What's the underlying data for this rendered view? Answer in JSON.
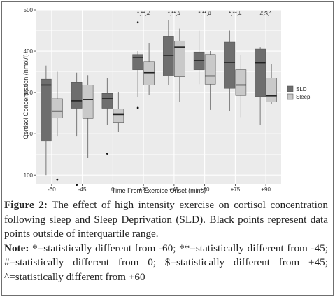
{
  "chart_data": {
    "type": "box",
    "xlabel": "Time From Exercise Onset (mins)",
    "ylabel": "Cortisol Concentration (nmol/l)",
    "ylim": [
      80,
      500
    ],
    "yticks": [
      100,
      200,
      300,
      400,
      500
    ],
    "categories": [
      "-60",
      "-45",
      "0",
      "+20",
      "+45",
      "+60",
      "+75",
      "+90"
    ],
    "significance": [
      "",
      "",
      "",
      "*,**,#",
      "*,**,#",
      "*,**,#",
      "*,**,#",
      "#,$,^"
    ],
    "legend_position": "right",
    "series": [
      {
        "name": "SLD",
        "color": "#6e6e6e",
        "boxes": [
          {
            "min": 100,
            "q1": 182,
            "median": 318,
            "q3": 332,
            "max": 365,
            "outliers": []
          },
          {
            "min": 195,
            "q1": 262,
            "median": 280,
            "q3": 325,
            "max": 348,
            "outliers": [
              77
            ]
          },
          {
            "min": 222,
            "q1": 262,
            "median": 285,
            "q3": 298,
            "max": 335,
            "outliers": [
              152
            ]
          },
          {
            "min": 290,
            "q1": 355,
            "median": 385,
            "q3": 392,
            "max": 400,
            "outliers": [
              470,
              263
            ]
          },
          {
            "min": 318,
            "q1": 340,
            "median": 390,
            "q3": 435,
            "max": 475,
            "outliers": []
          },
          {
            "min": 320,
            "q1": 355,
            "median": 378,
            "q3": 398,
            "max": 450,
            "outliers": []
          },
          {
            "min": 255,
            "q1": 310,
            "median": 373,
            "q3": 422,
            "max": 450,
            "outliers": []
          },
          {
            "min": 222,
            "q1": 290,
            "median": 372,
            "q3": 405,
            "max": 410,
            "outliers": []
          }
        ]
      },
      {
        "name": "Sleep",
        "color": "#c9c9c9",
        "boxes": [
          {
            "min": 195,
            "q1": 238,
            "median": 255,
            "q3": 285,
            "max": 350,
            "outliers": [
              90
            ]
          },
          {
            "min": 142,
            "q1": 237,
            "median": 283,
            "q3": 318,
            "max": 342,
            "outliers": []
          },
          {
            "min": 205,
            "q1": 228,
            "median": 247,
            "q3": 260,
            "max": 300,
            "outliers": []
          },
          {
            "min": 295,
            "q1": 318,
            "median": 348,
            "q3": 375,
            "max": 420,
            "outliers": []
          },
          {
            "min": 278,
            "q1": 338,
            "median": 410,
            "q3": 425,
            "max": 455,
            "outliers": []
          },
          {
            "min": 258,
            "q1": 320,
            "median": 340,
            "q3": 392,
            "max": 400,
            "outliers": []
          },
          {
            "min": 240,
            "q1": 293,
            "median": 318,
            "q3": 355,
            "max": 390,
            "outliers": []
          },
          {
            "min": 272,
            "q1": 277,
            "median": 292,
            "q3": 335,
            "max": 368,
            "outliers": []
          }
        ]
      }
    ]
  },
  "caption": {
    "figure_label": "Figure 2:",
    "text": " The effect of high intensity exercise on cortisol concentration following sleep and Sleep Deprivation (SLD). Black points represent data points outside of interquartile range.",
    "note_label": "Note:",
    "note_text": " *=statistically different from -60; **=statistically different from -45; #=statistically different from 0; $=statistically different from +45; ^=statistically different from +60"
  }
}
